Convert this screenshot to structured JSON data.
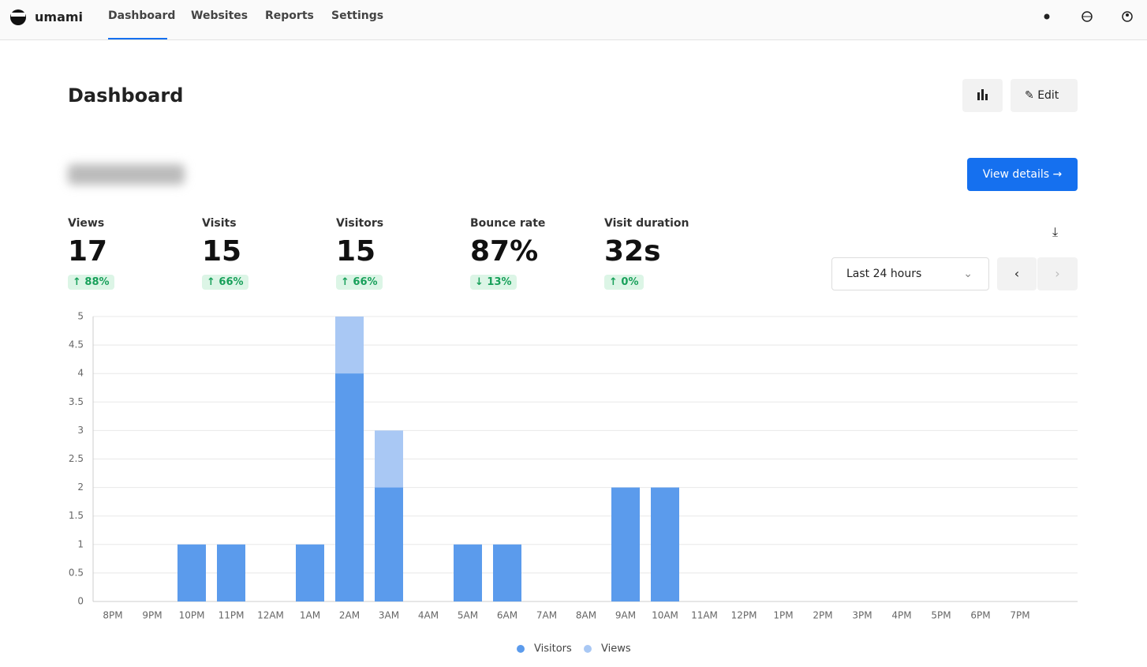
{
  "nav": {
    "brand": "umami",
    "items": [
      "Dashboard",
      "Websites",
      "Reports",
      "Settings"
    ],
    "active": 0
  },
  "header": {
    "title": "Dashboard",
    "edit": "Edit"
  },
  "website": {
    "view_details": "View details"
  },
  "stats": [
    {
      "label": "Views",
      "value": "17",
      "change": "88%",
      "direction": "up"
    },
    {
      "label": "Visits",
      "value": "15",
      "change": "66%",
      "direction": "up"
    },
    {
      "label": "Visitors",
      "value": "15",
      "change": "66%",
      "direction": "up"
    },
    {
      "label": "Bounce rate",
      "value": "87%",
      "change": "13%",
      "direction": "down"
    },
    {
      "label": "Visit duration",
      "value": "32s",
      "change": "0%",
      "direction": "up"
    }
  ],
  "date_range": "Last 24 hours",
  "chart_data": {
    "type": "bar",
    "overlay": true,
    "categories": [
      "8PM",
      "9PM",
      "10PM",
      "11PM",
      "12AM",
      "1AM",
      "2AM",
      "3AM",
      "4AM",
      "5AM",
      "6AM",
      "7AM",
      "8AM",
      "9AM",
      "10AM",
      "11AM",
      "12PM",
      "1PM",
      "2PM",
      "3PM",
      "4PM",
      "5PM",
      "6PM",
      "7PM"
    ],
    "series": [
      {
        "name": "Visitors",
        "color": "#5b9bec",
        "values": [
          0,
          0,
          1,
          1,
          0,
          1,
          4,
          2,
          0,
          1,
          1,
          0,
          0,
          2,
          2,
          0,
          0,
          0,
          0,
          0,
          0,
          0,
          0,
          0
        ]
      },
      {
        "name": "Views",
        "color": "#a9c8f4",
        "values": [
          0,
          0,
          1,
          1,
          0,
          1,
          5,
          3,
          0,
          1,
          1,
          0,
          0,
          2,
          2,
          0,
          0,
          0,
          0,
          0,
          0,
          0,
          0,
          0
        ]
      }
    ],
    "ylim": [
      0,
      5
    ],
    "yticks": [
      0,
      0.5,
      1,
      1.5,
      2,
      2.5,
      3,
      3.5,
      4,
      4.5,
      5
    ],
    "grid": true,
    "legend": "bottom"
  }
}
